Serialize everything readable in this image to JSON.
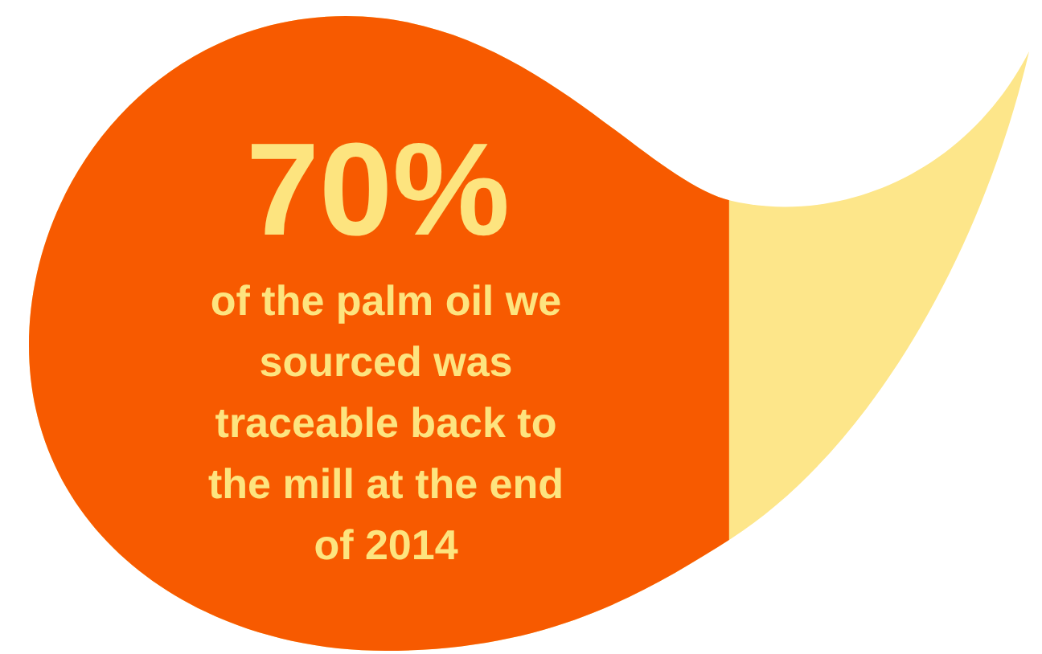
{
  "chart_data": {
    "type": "other",
    "subtitle": "of the palm oil we sourced was traceable back to the mill at the end of 2014",
    "values": [
      70
    ],
    "value_labels": [
      "70%"
    ],
    "color": "#f75a00"
  }
}
